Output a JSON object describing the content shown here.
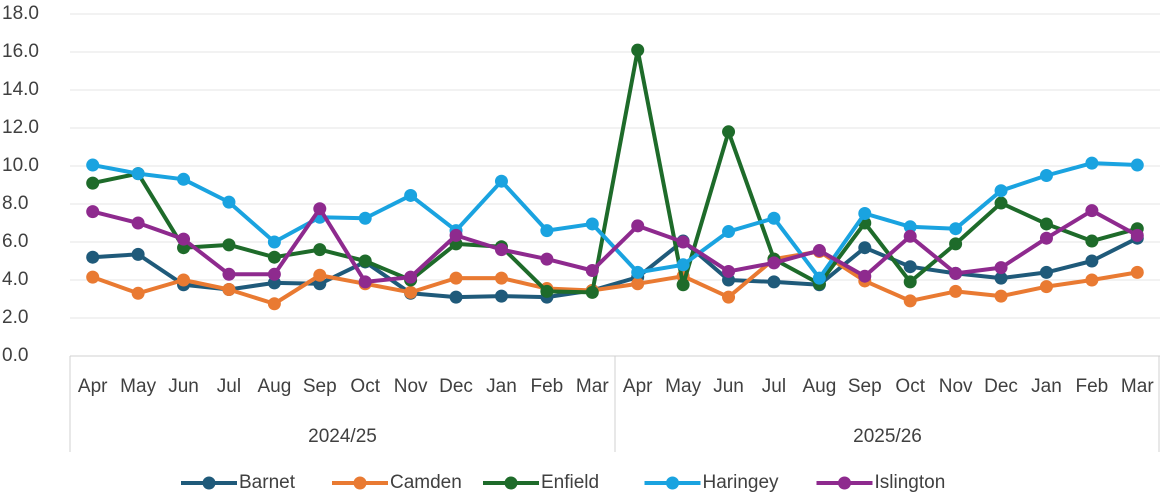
{
  "chart_data": {
    "type": "line",
    "categories": [
      "Apr",
      "May",
      "Jun",
      "Jul",
      "Aug",
      "Sep",
      "Oct",
      "Nov",
      "Dec",
      "Jan",
      "Feb",
      "Mar",
      "Apr",
      "May",
      "Jun",
      "Jul",
      "Aug",
      "Sep",
      "Oct",
      "Nov",
      "Dec",
      "Jan",
      "Feb",
      "Mar"
    ],
    "x_groups": [
      {
        "label": "2024/25",
        "size": 12
      },
      {
        "label": "2025/26",
        "size": 12
      }
    ],
    "series": [
      {
        "name": "Barnet",
        "color": "#1f5a7a",
        "values": [
          5.2,
          5.35,
          3.75,
          3.5,
          3.85,
          3.8,
          4.95,
          3.3,
          3.1,
          3.15,
          3.1,
          3.45,
          4.15,
          6.05,
          4.0,
          3.9,
          3.75,
          5.7,
          4.7,
          4.35,
          4.1,
          4.4,
          5.0,
          6.2
        ]
      },
      {
        "name": "Camden",
        "color": "#e97a32",
        "values": [
          4.15,
          3.3,
          4.0,
          3.5,
          2.75,
          4.25,
          3.8,
          3.35,
          4.1,
          4.1,
          3.55,
          3.45,
          3.8,
          4.2,
          3.1,
          5.1,
          5.5,
          3.95,
          2.9,
          3.4,
          3.15,
          3.65,
          4.0,
          4.4
        ]
      },
      {
        "name": "Enfield",
        "color": "#1e6b2a",
        "values": [
          9.1,
          9.6,
          5.7,
          5.85,
          5.2,
          5.6,
          5.0,
          4.0,
          5.9,
          5.75,
          3.4,
          3.35,
          16.1,
          3.75,
          11.8,
          5.1,
          3.8,
          7.0,
          3.9,
          5.9,
          8.05,
          6.95,
          6.05,
          6.7
        ]
      },
      {
        "name": "Haringey",
        "color": "#1aa3e0",
        "values": [
          10.05,
          9.6,
          9.3,
          8.1,
          6.0,
          7.3,
          7.25,
          8.45,
          6.6,
          9.2,
          6.6,
          6.95,
          4.4,
          4.8,
          6.55,
          7.25,
          4.1,
          7.5,
          6.8,
          6.7,
          8.7,
          9.5,
          10.15,
          10.05
        ]
      },
      {
        "name": "Islington",
        "color": "#8e2a8e",
        "values": [
          7.6,
          7.0,
          6.15,
          4.3,
          4.3,
          7.75,
          3.9,
          4.15,
          6.35,
          5.6,
          5.1,
          4.5,
          6.85,
          6.0,
          4.45,
          4.9,
          5.55,
          4.2,
          6.3,
          4.35,
          4.65,
          6.2,
          7.65,
          6.35
        ]
      }
    ],
    "ylim": [
      0,
      18
    ],
    "yticks": [
      {
        "value": 0,
        "label": "0.0"
      },
      {
        "value": 2,
        "label": "2.0"
      },
      {
        "value": 4,
        "label": "4.0"
      },
      {
        "value": 6,
        "label": "6.0"
      },
      {
        "value": 8,
        "label": "8.0"
      },
      {
        "value": 10,
        "label": "10.0"
      },
      {
        "value": 12,
        "label": "12.0"
      },
      {
        "value": 14,
        "label": "14.0"
      },
      {
        "value": 16,
        "label": "16.0"
      },
      {
        "value": 18,
        "label": "18.0"
      }
    ],
    "grid": true,
    "legend": "bottom"
  }
}
